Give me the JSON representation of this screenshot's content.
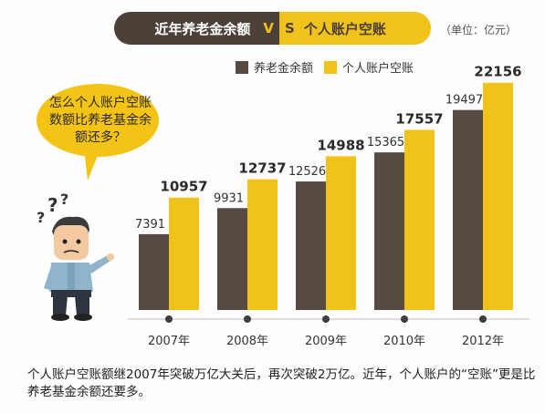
{
  "title": {
    "left": "近年养老金余额",
    "vs_v": "V",
    "vs_s": "S",
    "right": "个人账户空账"
  },
  "unit": "（单位：亿元）",
  "bubble": {
    "text": "怎么个人账户空账数额比养老基金余额还多？"
  },
  "caption": "个人账户空账额继2007年突破万亿大关后，再次突破2万亿。近年，个人账户的“空账”更是比养老基金余额还要多。",
  "colors": {
    "dark": "#574a42",
    "gold": "#f1c31a",
    "title_dark": "#4c4039"
  },
  "chart_data": {
    "type": "bar",
    "categories": [
      "2007年",
      "2008年",
      "2009年",
      "2010年",
      "2012年"
    ],
    "series": [
      {
        "name": "养老金余额",
        "values": [
          7391,
          9931,
          12526,
          15365,
          19497
        ]
      },
      {
        "name": "个人账户空账",
        "values": [
          10957,
          12737,
          14988,
          17557,
          22156
        ]
      }
    ],
    "legend": "top",
    "ylim": [
      0,
      24000
    ],
    "grid": false
  }
}
